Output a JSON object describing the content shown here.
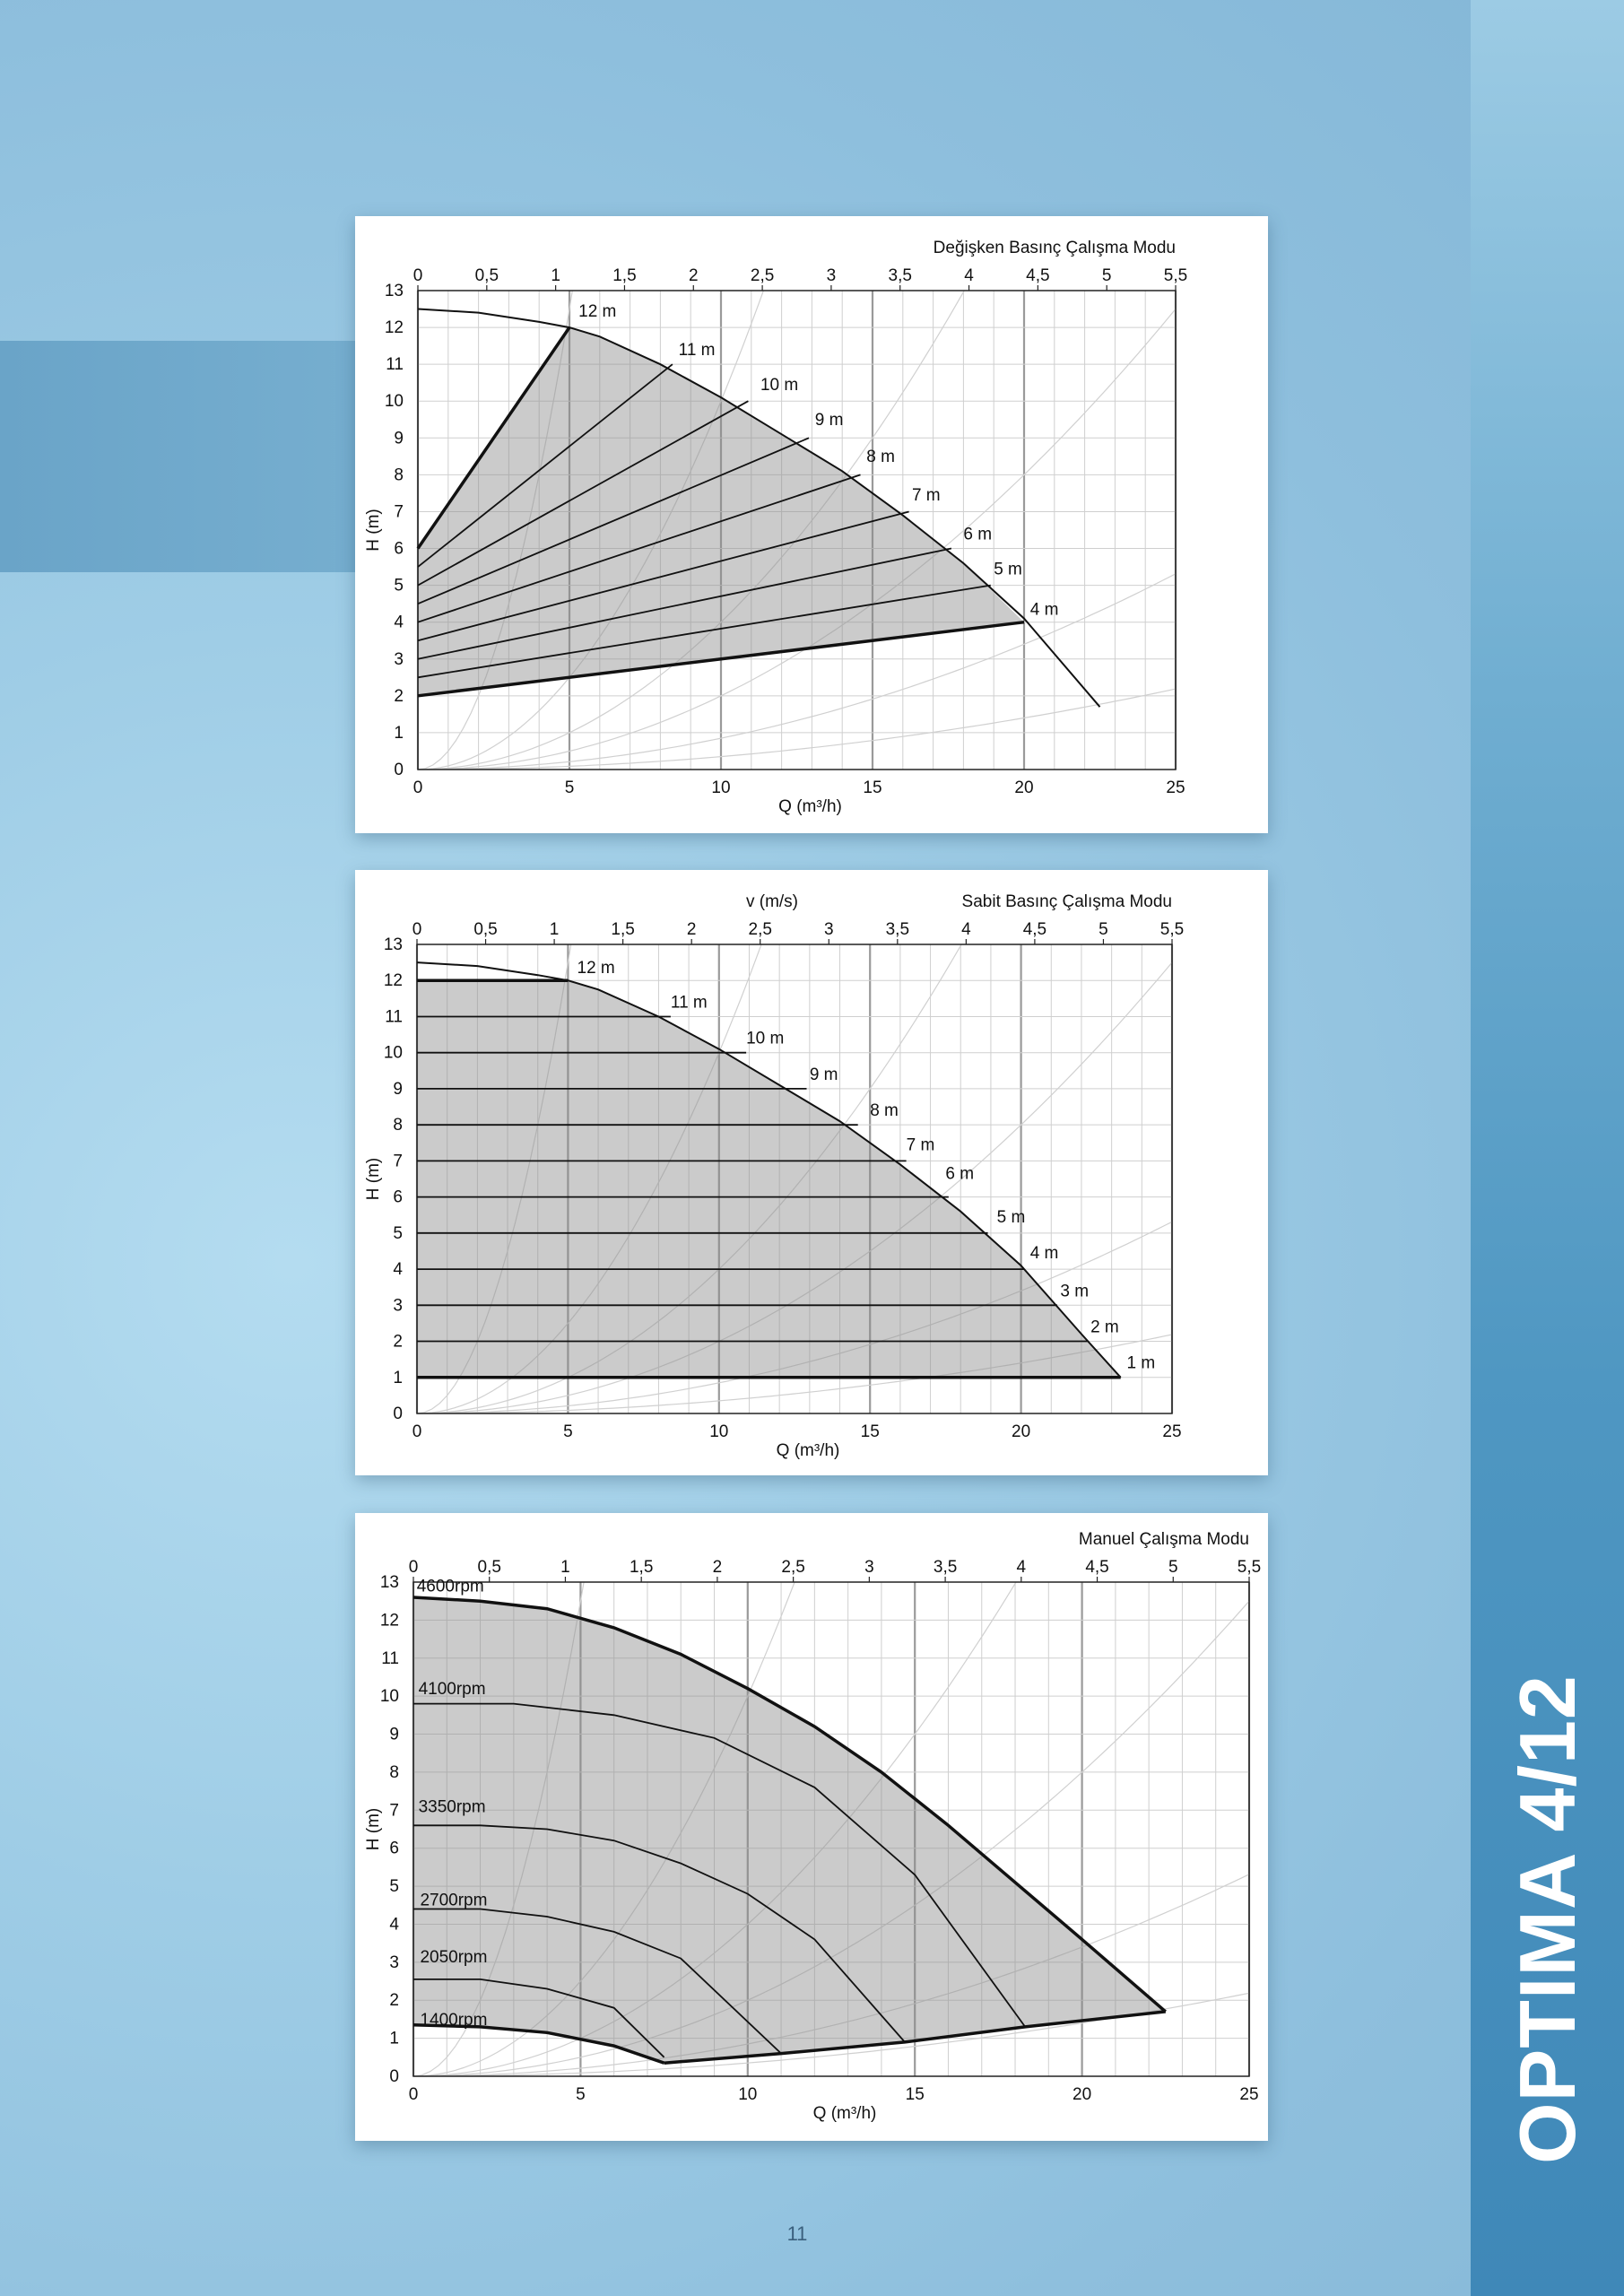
{
  "brand": "OPTIMA 4/12",
  "page_number": "11",
  "chart_data": [
    {
      "type": "line",
      "title": "Değişken Basınç Çalışma Modu",
      "top_axis_label": "",
      "xlabel": "Q (m³/h)",
      "ylabel": "H (m)",
      "xlim": [
        0,
        25
      ],
      "ylim": [
        0,
        13
      ],
      "x_ticks": [
        "0",
        "5",
        "10",
        "15",
        "20",
        "25"
      ],
      "y_ticks": [
        "0",
        "1",
        "2",
        "3",
        "4",
        "5",
        "6",
        "7",
        "8",
        "9",
        "10",
        "11",
        "12",
        "13"
      ],
      "top_ticks": [
        "0",
        "0,5",
        "1",
        "1,5",
        "2",
        "2,5",
        "3",
        "3,5",
        "4",
        "4,5",
        "5",
        "5,5"
      ],
      "top_range": [
        0,
        5.5
      ],
      "max_curve": {
        "x": [
          0,
          2,
          4,
          5,
          6,
          8,
          10,
          12,
          14,
          16,
          18,
          20,
          22.5
        ],
        "y": [
          12.5,
          12.4,
          12.15,
          12,
          11.75,
          11,
          10.1,
          9.1,
          8.1,
          6.9,
          5.6,
          4.1,
          1.7
        ]
      },
      "shaded_region": {
        "x": [
          0,
          5,
          6,
          8,
          10,
          12,
          14,
          16,
          18,
          20,
          0
        ],
        "y": [
          6,
          12,
          11.75,
          11,
          10.1,
          9.1,
          8.1,
          6.9,
          5.6,
          4,
          2
        ]
      },
      "series": [
        {
          "name": "12 m",
          "x": [
            0,
            5
          ],
          "y": [
            6,
            12
          ],
          "label_at": [
            5.3,
            12.3
          ]
        },
        {
          "name": "11 m",
          "x": [
            0,
            8.4
          ],
          "y": [
            5.5,
            11
          ],
          "label_at": [
            8.6,
            11.25
          ]
        },
        {
          "name": "10 m",
          "x": [
            0,
            10.9
          ],
          "y": [
            5,
            10
          ],
          "label_at": [
            11.3,
            10.3
          ]
        },
        {
          "name": "9 m",
          "x": [
            0,
            12.9
          ],
          "y": [
            4.5,
            9
          ],
          "label_at": [
            13.1,
            9.35
          ]
        },
        {
          "name": "8 m",
          "x": [
            0,
            14.6
          ],
          "y": [
            4,
            8
          ],
          "label_at": [
            14.8,
            8.35
          ]
        },
        {
          "name": "7 m",
          "x": [
            0,
            16.2
          ],
          "y": [
            3.5,
            7
          ],
          "label_at": [
            16.3,
            7.3
          ]
        },
        {
          "name": "6 m",
          "x": [
            0,
            17.6
          ],
          "y": [
            3,
            6
          ],
          "label_at": [
            18,
            6.25
          ]
        },
        {
          "name": "5 m",
          "x": [
            0,
            18.9
          ],
          "y": [
            2.5,
            5
          ],
          "label_at": [
            19,
            5.3
          ]
        },
        {
          "name": "4 m",
          "x": [
            0,
            20
          ],
          "y": [
            2,
            4
          ],
          "label_at": [
            20.2,
            4.2
          ]
        }
      ]
    },
    {
      "type": "line",
      "title": "Sabit Basınç Çalışma Modu",
      "top_axis_label": "v (m/s)",
      "xlabel": "Q (m³/h)",
      "ylabel": "H (m)",
      "xlim": [
        0,
        25
      ],
      "ylim": [
        0,
        13
      ],
      "x_ticks": [
        "0",
        "5",
        "10",
        "15",
        "20",
        "25"
      ],
      "y_ticks": [
        "0",
        "1",
        "2",
        "3",
        "4",
        "5",
        "6",
        "7",
        "8",
        "9",
        "10",
        "11",
        "12",
        "13"
      ],
      "top_ticks": [
        "0",
        "0,5",
        "1",
        "1,5",
        "2",
        "2,5",
        "3",
        "3,5",
        "4",
        "4,5",
        "5",
        "5,5"
      ],
      "top_range": [
        0,
        5.5
      ],
      "max_curve": {
        "x": [
          0,
          2,
          4,
          5,
          6,
          8,
          10,
          12,
          14,
          16,
          18,
          20,
          22,
          23.3
        ],
        "y": [
          12.5,
          12.4,
          12.15,
          12,
          11.75,
          11,
          10.1,
          9.1,
          8.1,
          6.9,
          5.6,
          4.1,
          2.2,
          1
        ]
      },
      "shaded_region": {
        "x": [
          0,
          5,
          6,
          8,
          10,
          12,
          14,
          16,
          18,
          20,
          22,
          23.3,
          0
        ],
        "y": [
          12,
          12,
          11.75,
          11,
          10.1,
          9.1,
          8.1,
          6.9,
          5.6,
          4.1,
          2.2,
          1,
          1
        ]
      },
      "series": [
        {
          "name": "12 m",
          "x": [
            0,
            5
          ],
          "y": [
            12,
            12
          ],
          "label_at": [
            5.3,
            12.2
          ]
        },
        {
          "name": "11 m",
          "x": [
            0,
            8.4
          ],
          "y": [
            11,
            11
          ],
          "label_at": [
            8.4,
            11.25
          ]
        },
        {
          "name": "10 m",
          "x": [
            0,
            10.9
          ],
          "y": [
            10,
            10
          ],
          "label_at": [
            10.9,
            10.25
          ]
        },
        {
          "name": "9 m",
          "x": [
            0,
            12.9
          ],
          "y": [
            9,
            9
          ],
          "label_at": [
            13,
            9.25
          ]
        },
        {
          "name": "8 m",
          "x": [
            0,
            14.6
          ],
          "y": [
            8,
            8
          ],
          "label_at": [
            15,
            8.25
          ]
        },
        {
          "name": "7 m",
          "x": [
            0,
            16.2
          ],
          "y": [
            7,
            7
          ],
          "label_at": [
            16.2,
            7.3
          ]
        },
        {
          "name": "6 m",
          "x": [
            0,
            17.6
          ],
          "y": [
            6,
            6
          ],
          "label_at": [
            17.5,
            6.5
          ]
        },
        {
          "name": "5 m",
          "x": [
            0,
            18.9
          ],
          "y": [
            5,
            5
          ],
          "label_at": [
            19.2,
            5.3
          ]
        },
        {
          "name": "4 m",
          "x": [
            0,
            20.1
          ],
          "y": [
            4,
            4
          ],
          "label_at": [
            20.3,
            4.3
          ]
        },
        {
          "name": "3 m",
          "x": [
            0,
            21.2
          ],
          "y": [
            3,
            3
          ],
          "label_at": [
            21.3,
            3.25
          ]
        },
        {
          "name": "2 m",
          "x": [
            0,
            22.2
          ],
          "y": [
            2,
            2
          ],
          "label_at": [
            22.3,
            2.25
          ]
        },
        {
          "name": "1 m",
          "x": [
            0,
            23.3
          ],
          "y": [
            1,
            1
          ],
          "label_at": [
            23.5,
            1.25
          ]
        }
      ]
    },
    {
      "type": "line",
      "title": "Manuel Çalışma Modu",
      "top_axis_label": "",
      "xlabel": "Q (m³/h)",
      "ylabel": "H (m)",
      "xlim": [
        0,
        25
      ],
      "ylim": [
        0,
        13
      ],
      "x_ticks": [
        "0",
        "5",
        "10",
        "15",
        "20",
        "25"
      ],
      "y_ticks": [
        "0",
        "1",
        "2",
        "3",
        "4",
        "5",
        "6",
        "7",
        "8",
        "9",
        "10",
        "11",
        "12",
        "13"
      ],
      "top_ticks": [
        "0",
        "0,5",
        "1",
        "1,5",
        "2",
        "2,5",
        "3",
        "3,5",
        "4",
        "4,5",
        "5",
        "5,5"
      ],
      "top_range": [
        0,
        5.5
      ],
      "shaded_region": {
        "x": [
          0,
          2,
          4,
          6,
          8,
          10,
          12,
          14,
          16,
          18,
          20,
          22.5,
          18.3,
          14.7,
          11,
          7.5,
          6,
          4,
          2,
          0
        ],
        "y": [
          12.6,
          12.5,
          12.3,
          11.8,
          11.1,
          10.2,
          9.2,
          8,
          6.6,
          5.1,
          3.6,
          1.7,
          1.3,
          0.9,
          0.6,
          0.35,
          0.8,
          1.15,
          1.3,
          1.35
        ]
      },
      "min_curve": {
        "x": [
          7.5,
          11,
          14.7,
          18.3,
          22.5
        ],
        "y": [
          0.35,
          0.6,
          0.9,
          1.3,
          1.7
        ]
      },
      "series": [
        {
          "name": "4600rpm",
          "x": [
            0,
            2,
            4,
            6,
            8,
            10,
            12,
            14,
            16,
            18,
            20,
            22.5
          ],
          "y": [
            12.6,
            12.5,
            12.3,
            11.8,
            11.1,
            10.2,
            9.2,
            8,
            6.6,
            5.1,
            3.6,
            1.7
          ],
          "label_at": [
            0.1,
            12.75
          ]
        },
        {
          "name": "4100rpm",
          "x": [
            0,
            3,
            6,
            9,
            12,
            15,
            18.3
          ],
          "y": [
            9.8,
            9.8,
            9.5,
            8.9,
            7.6,
            5.3,
            1.3
          ],
          "label_at": [
            0.15,
            10.05
          ]
        },
        {
          "name": "3350rpm",
          "x": [
            0,
            2,
            4,
            6,
            8,
            10,
            12,
            14.7
          ],
          "y": [
            6.6,
            6.6,
            6.5,
            6.2,
            5.6,
            4.8,
            3.6,
            0.9
          ],
          "label_at": [
            0.15,
            6.95
          ]
        },
        {
          "name": "2700rpm",
          "x": [
            0,
            2,
            4,
            6,
            8,
            11
          ],
          "y": [
            4.4,
            4.4,
            4.2,
            3.8,
            3.1,
            0.6
          ],
          "label_at": [
            0.2,
            4.5
          ]
        },
        {
          "name": "2050rpm",
          "x": [
            0,
            2,
            4,
            6,
            7.5
          ],
          "y": [
            2.55,
            2.55,
            2.3,
            1.8,
            0.5
          ],
          "label_at": [
            0.2,
            3.0
          ]
        },
        {
          "name": "1400rpm",
          "x": [
            0,
            2,
            4,
            6,
            7.5
          ],
          "y": [
            1.35,
            1.3,
            1.15,
            0.8,
            0.35
          ],
          "label_at": [
            0.2,
            1.35
          ]
        }
      ]
    }
  ]
}
